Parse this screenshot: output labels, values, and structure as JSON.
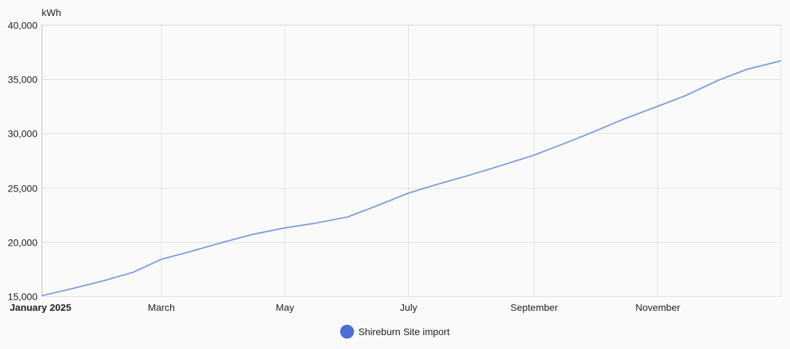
{
  "chart_data": {
    "type": "line",
    "unit": "kWh",
    "ylim": [
      15000,
      40000
    ],
    "y_ticks": [
      {
        "value": 15000,
        "label": "15,000"
      },
      {
        "value": 20000,
        "label": "20,000"
      },
      {
        "value": 25000,
        "label": "25,000"
      },
      {
        "value": 30000,
        "label": "30,000"
      },
      {
        "value": 35000,
        "label": "35,000"
      },
      {
        "value": 40000,
        "label": "40,000"
      }
    ],
    "x_range": [
      "2025-01-01",
      "2026-01-01"
    ],
    "x_ticks": [
      {
        "date": "2025-01-01",
        "label": "January 2025",
        "bold": true
      },
      {
        "date": "2025-03-01",
        "label": "March",
        "bold": false
      },
      {
        "date": "2025-05-01",
        "label": "May",
        "bold": false
      },
      {
        "date": "2025-07-01",
        "label": "July",
        "bold": false
      },
      {
        "date": "2025-09-01",
        "label": "September",
        "bold": false
      },
      {
        "date": "2025-11-01",
        "label": "November",
        "bold": false
      }
    ],
    "grid": true,
    "legend_position": "bottom-center",
    "series": [
      {
        "name": "Shireburn Site import",
        "color": "#4a6fd6",
        "line_color": "#7f9ce0",
        "points": [
          [
            "2025-01-01",
            15050
          ],
          [
            "2025-01-15",
            15650
          ],
          [
            "2025-02-01",
            16450
          ],
          [
            "2025-02-15",
            17200
          ],
          [
            "2025-03-01",
            18400
          ],
          [
            "2025-03-15",
            19100
          ],
          [
            "2025-04-01",
            20000
          ],
          [
            "2025-04-15",
            20700
          ],
          [
            "2025-05-01",
            21300
          ],
          [
            "2025-05-15",
            21700
          ],
          [
            "2025-06-01",
            22300
          ],
          [
            "2025-06-15",
            23300
          ],
          [
            "2025-07-01",
            24500
          ],
          [
            "2025-07-15",
            25300
          ],
          [
            "2025-08-01",
            26200
          ],
          [
            "2025-08-15",
            27000
          ],
          [
            "2025-09-01",
            28000
          ],
          [
            "2025-09-15",
            29000
          ],
          [
            "2025-10-01",
            30200
          ],
          [
            "2025-10-15",
            31300
          ],
          [
            "2025-11-01",
            32500
          ],
          [
            "2025-11-15",
            33500
          ],
          [
            "2025-12-01",
            34900
          ],
          [
            "2025-12-15",
            35900
          ],
          [
            "2026-01-01",
            36700
          ]
        ]
      }
    ]
  }
}
